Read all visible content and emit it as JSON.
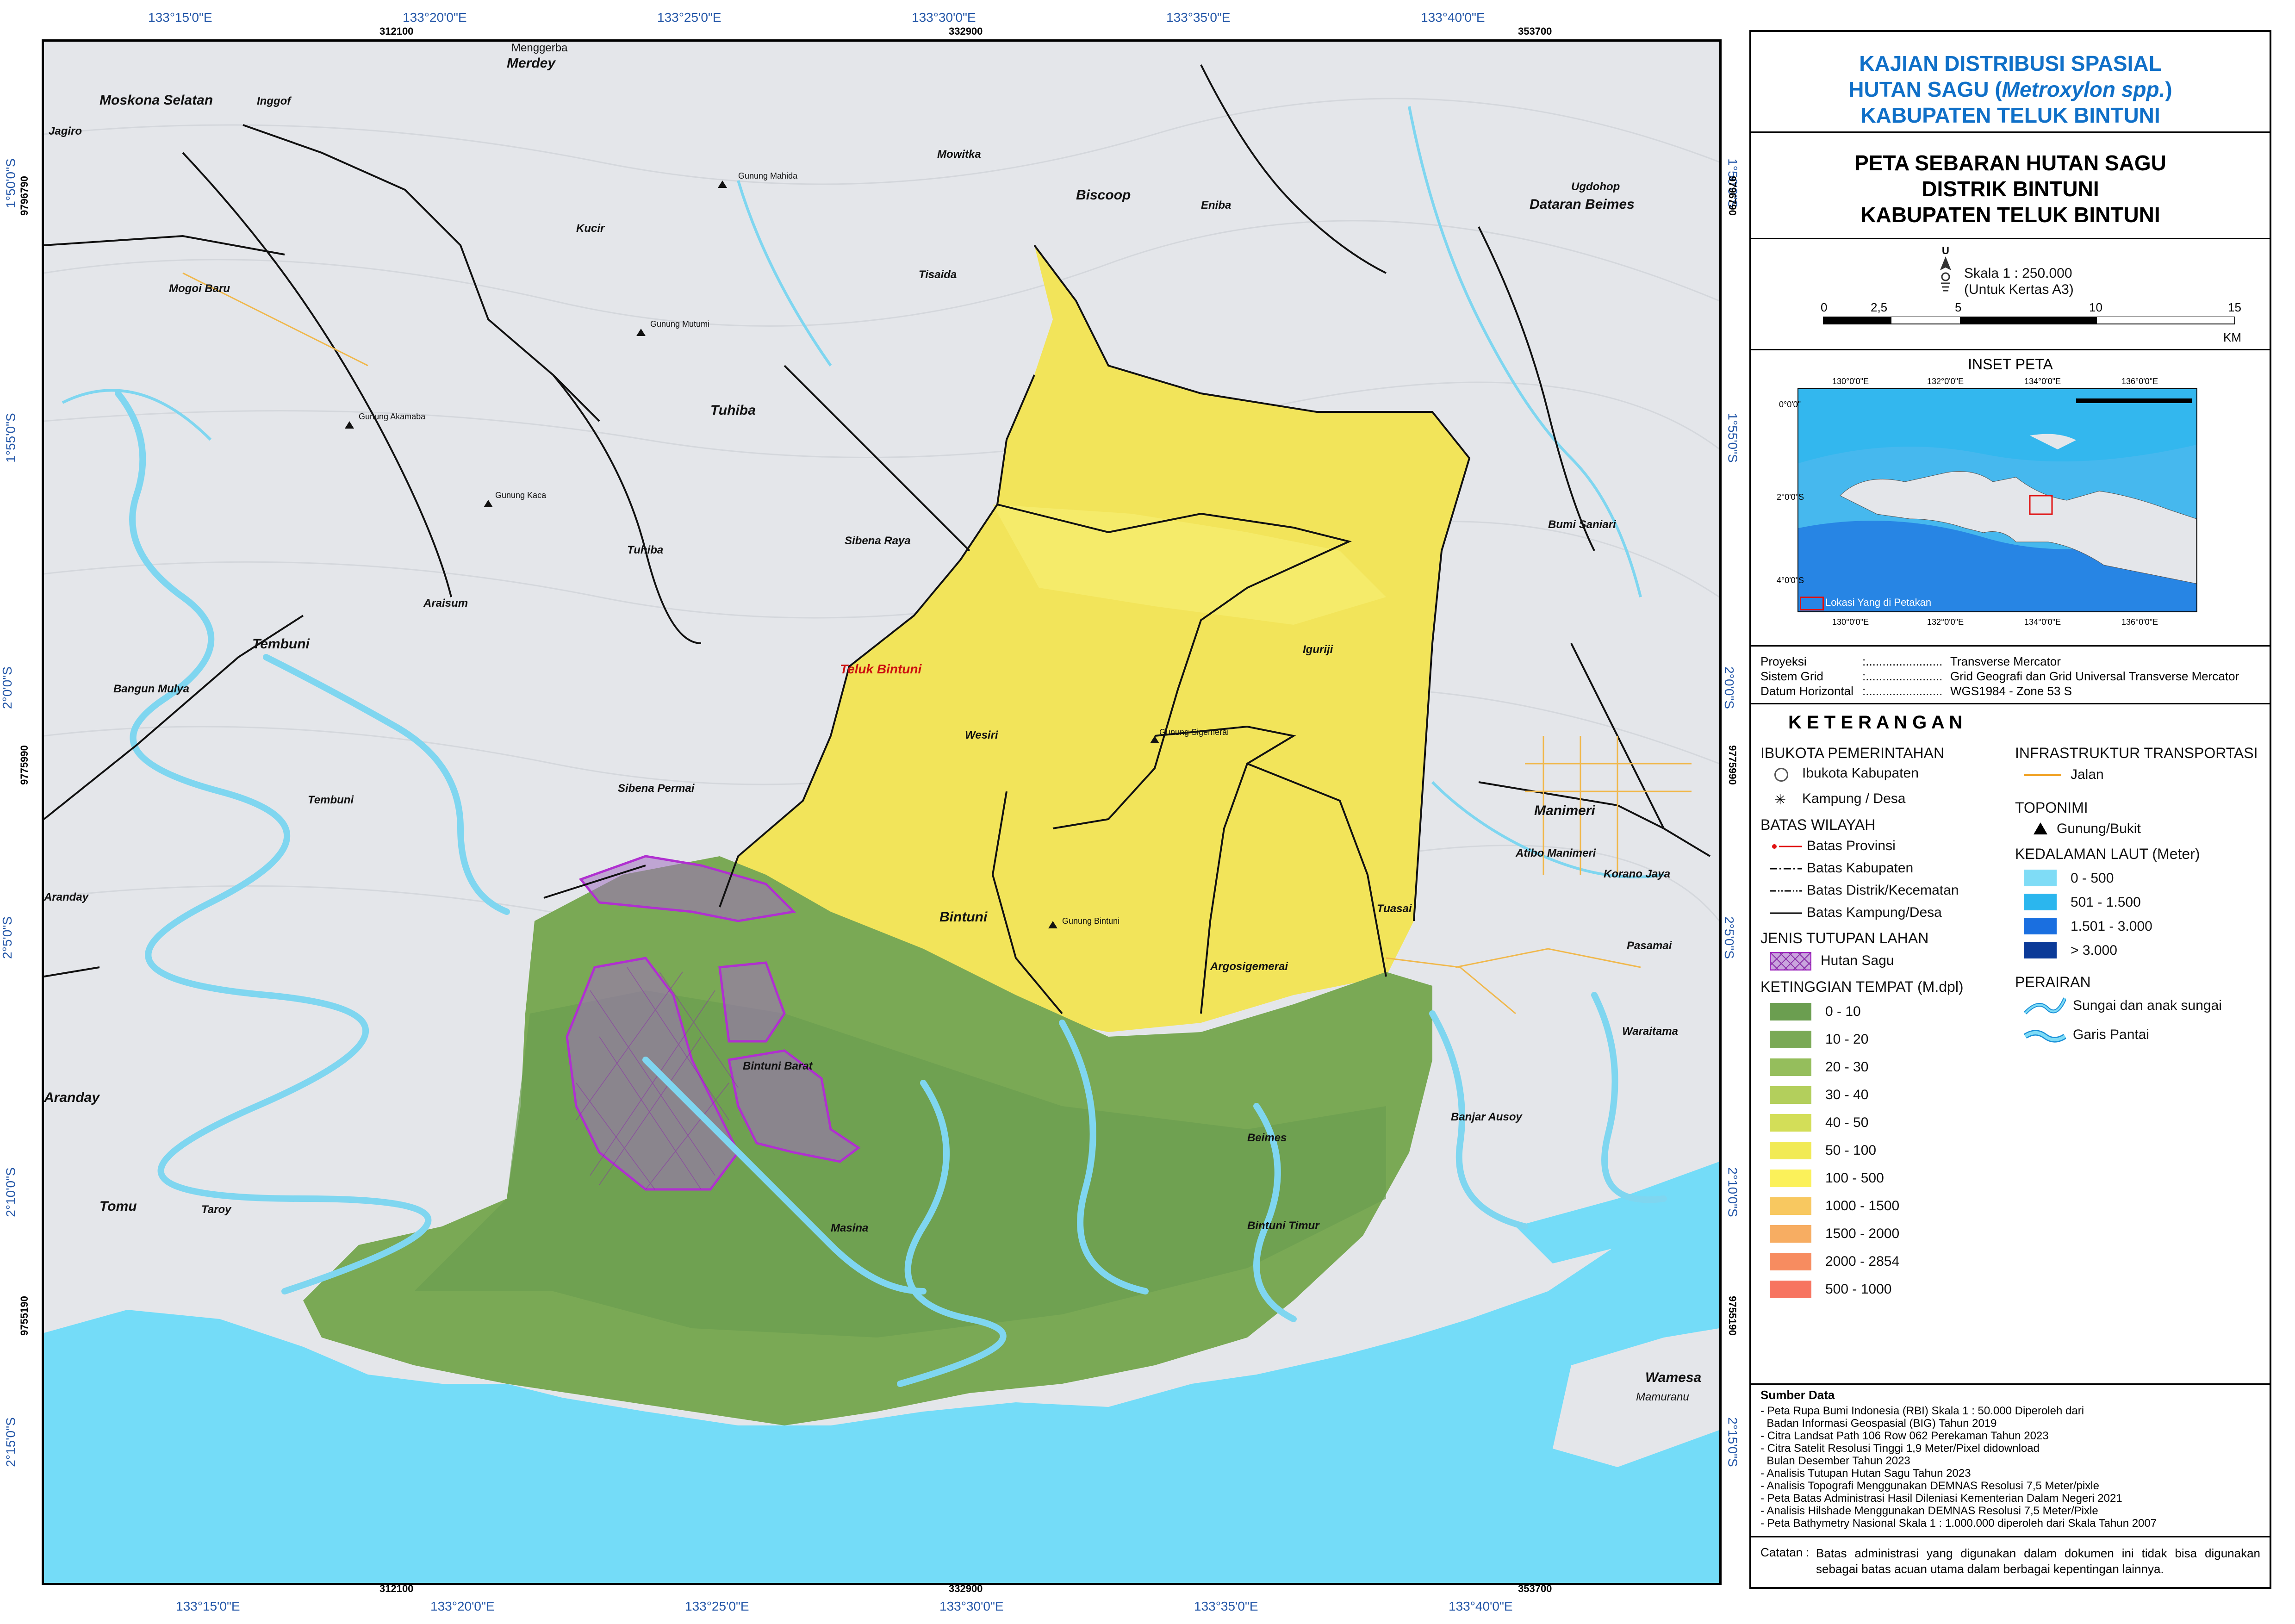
{
  "colors": {
    "sea": "#74dcf8",
    "land": "#e6e8ec",
    "green_low": "#6b9e50",
    "green_mid": "#93b85c",
    "yellow": "#f2e45a",
    "yellow_light": "#f6ee70",
    "sago": "#8a3fb0",
    "river": "#7fd6f0",
    "title_blue": "#1070c8"
  },
  "top_coords": [
    "133°15'0\"E",
    "133°20'0\"E",
    "133°25'0\"E",
    "133°30'0\"E",
    "133°35'0\"E",
    "133°40'0\"E"
  ],
  "bottom_coords": [
    "133°15'0\"E",
    "133°20'0\"E",
    "133°25'0\"E",
    "133°30'0\"E",
    "133°35'0\"E",
    "133°40'0\"E"
  ],
  "left_coords": [
    "1°50'0\"S",
    "1°55'0\"S",
    "2°0'0\"S",
    "2°5'0\"S",
    "2°10'0\"S",
    "2°15'0\"S"
  ],
  "right_coords": [
    "1°50'0\"S",
    "1°55'0\"S",
    "2°0'0\"S",
    "2°5'0\"S",
    "2°10'0\"S",
    "2°15'0\"S"
  ],
  "grid_x": [
    "312100",
    "332900",
    "353700"
  ],
  "grid_y": [
    "9796790",
    "9775990",
    "9755190"
  ],
  "places": {
    "moskona_selatan": "Moskona Selatan",
    "inggof": "Inggof",
    "jagiro": "Jagiro",
    "merdey": "Merdey",
    "menggerba": "Menggerba",
    "mowitka": "Mowitka",
    "biscoop": "Biscoop",
    "eniba": "Eniba",
    "ugdohop": "Ugdohop",
    "dataran_beimes": "Dataran Beimes",
    "kucir": "Kucir",
    "mogoi_baru": "Mogoi Baru",
    "tisaida": "Tisaida",
    "tuhiba_big": "Tuhiba",
    "tuhiba": "Tuhiba",
    "sibena_raya": "Sibena Raya",
    "bumi_saniari": "Bumi Saniari",
    "araisum": "Araisum",
    "tembuni_big": "Tembuni",
    "bangun_mulya": "Bangun Mulya",
    "teluk_bintuni": "Teluk Bintuni",
    "wesiri": "Wesiri",
    "iguriji": "Iguriji",
    "sibena_permai": "Sibena Permai",
    "tembuni": "Tembuni",
    "manimeri_big": "Manimeri",
    "atibo_manimeri": "Atibo Manimeri",
    "korano_jaya": "Korano Jaya",
    "aranday_sm": "Aranday",
    "tuasai": "Tuasai",
    "bintuni_big": "Bintuni",
    "argosigemerai": "Argosigemerai",
    "pasamai": "Pasamai",
    "bintuni_barat": "Bintuni Barat",
    "waraitama": "Waraitama",
    "aranday_big": "Aranday",
    "beimes": "Beimes",
    "banjar_ausoy": "Banjar Ausoy",
    "tomu": "Tomu",
    "taroy": "Taroy",
    "masina": "Masina",
    "bintuni_timur": "Bintuni Timur",
    "wamesa": "Wamesa",
    "mamuranu": "Mamuranu",
    "gunung_mahida": "Gunung Mahida",
    "gunung_mutumi": "Gunung Mutumi",
    "gunung_akamaba": "Gunung Akamaba",
    "gunung_kaca": "Gunung Kaca",
    "gunung_sigemerai": "Gunung Sigemerai",
    "gunung_bintuni": "Gunung Bintuni"
  },
  "panel": {
    "title1_a": "KAJIAN DISTRIBUSI SPASIAL",
    "title1_b_pre": "HUTAN SAGU (",
    "title1_b_italic": "Metroxylon spp.",
    "title1_b_post": ")",
    "title1_c": "KABUPATEN TELUK BINTUNI",
    "title2_a": "PETA SEBARAN HUTAN SAGU",
    "title2_b": "DISTRIK BINTUNI",
    "title2_c": "KABUPATEN TELUK BINTUNI",
    "north_letter": "U",
    "scale_text": "Skala 1 : 250.000",
    "scale_note": "(Untuk Kertas A3)",
    "scale_ticks": [
      "0",
      "2,5",
      "5",
      "10",
      "15"
    ],
    "scale_unit": "KM",
    "inset_title": "INSET PETA",
    "inset_coords_top": [
      "130°0'0\"E",
      "132°0'0\"E",
      "134°0'0\"E",
      "136°0'0\"E"
    ],
    "inset_coords_bottom": [
      "130°0'0\"E",
      "132°0'0\"E",
      "134°0'0\"E",
      "136°0'0\"E"
    ],
    "inset_coords_left": [
      "0°0'0\"",
      "2°0'0\"S",
      "4°0'0\"S"
    ],
    "inset_legend": "Lokasi Yang di Petakan",
    "meta": [
      {
        "k": "Proyeksi",
        "s": ":.......................",
        "v": "Transverse Mercator"
      },
      {
        "k": "Sistem Grid",
        "s": ":.......................",
        "v": "Grid Geografi dan Grid Universal Transverse Mercator"
      },
      {
        "k": "Datum Horizontal",
        "s": ":.......................",
        "v": "WGS1984 - Zone 53 S"
      }
    ],
    "keterangan": "K E T E R A N G A N",
    "ibukota_h": "IBUKOTA PEMERINTAHAN",
    "ibukota_kab": "Ibukota Kabupaten",
    "kampung": "Kampung / Desa",
    "batas_h": "BATAS WILAYAH",
    "batas_prov": "Batas Provinsi",
    "batas_kab": "Batas Kabupaten",
    "batas_distrik": "Batas Distrik/Kecematan",
    "batas_kampung": "Batas Kampung/Desa",
    "jenis_h": "JENIS TUTUPAN LAHAN",
    "hutan_sagu": "Hutan Sagu",
    "ketinggian_h": "KETINGGIAN TEMPAT (M.dpl)",
    "elev": [
      {
        "label": "0 - 10",
        "color": "#6b9e50"
      },
      {
        "label": "10 - 20",
        "color": "#7aa955"
      },
      {
        "label": "20 - 30",
        "color": "#95be5c"
      },
      {
        "label": "30 - 40",
        "color": "#b3cf5c"
      },
      {
        "label": "40 - 50",
        "color": "#d3de58"
      },
      {
        "label": "50 - 100",
        "color": "#f1ea55"
      },
      {
        "label": "100 - 500",
        "color": "#fbf15a"
      },
      {
        "label": "1000 - 1500",
        "color": "#f8c860"
      },
      {
        "label": "1500 - 2000",
        "color": "#f7ad62"
      },
      {
        "label": "2000 - 2854",
        "color": "#f78c60"
      },
      {
        "label": "500 - 1000",
        "color": "#f77460"
      }
    ],
    "infra_h": "INFRASTRUKTUR TRANSPORTASI",
    "jalan": "Jalan",
    "toponimi_h": "TOPONIMI",
    "gunung": "Gunung/Bukit",
    "kedalaman_h": "KEDALAMAN LAUT (Meter)",
    "depth": [
      {
        "label": "0 - 500",
        "color": "#7fdcf6"
      },
      {
        "label": "501 - 1.500",
        "color": "#2bb6ee"
      },
      {
        "label": "1.501 - 3.000",
        "color": "#1a6fe0"
      },
      {
        "label": "> 3.000",
        "color": "#0b3a98"
      }
    ],
    "perairan_h": "PERAIRAN",
    "sungai": "Sungai dan anak sungai",
    "garis_pantai": "Garis Pantai",
    "sumber_h": "Sumber Data",
    "sumber": [
      "- Peta Rupa Bumi Indonesia (RBI) Skala 1 : 50.000 Diperoleh dari",
      "  Badan Informasi Geospasial (BIG) Tahun 2019",
      "- Citra Landsat Path 106 Row 062 Perekaman Tahun 2023",
      "- Citra Satelit Resolusi Tinggi 1,9 Meter/Pixel didownload",
      "  Bulan Desember Tahun 2023",
      "- Analisis Tutupan Hutan Sagu Tahun 2023",
      "- Analisis Topografi Menggunakan DEMNAS Resolusi 7,5 Meter/pixle",
      "- Peta Batas Administrasi Hasil Dileniasi Kementerian Dalam Negeri 2021",
      "- Analisis Hilshade Menggunakan DEMNAS Resolusi 7,5 Meter/Pixle",
      "- Peta Bathymetry Nasional Skala 1 : 1.000.000 diperoleh dari Skala Tahun 2007"
    ],
    "catatan_k": "Catatan :",
    "catatan_v": "Batas administrasi yang digunakan dalam dokumen ini tidak bisa digunakan sebagai batas acuan utama dalam berbagai kepentingan lainnya."
  }
}
